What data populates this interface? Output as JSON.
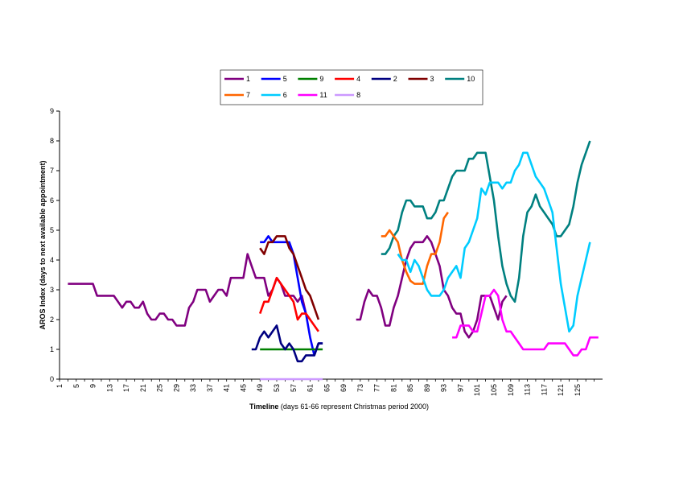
{
  "chart_data": {
    "type": "line",
    "xlabel_bold": "Timeline",
    "xlabel_rest": " (days 61-66 represent Christmas period 2000)",
    "ylabel": "AROS Index (days to next available appointment)",
    "xlim": [
      1,
      126
    ],
    "ylim": [
      0,
      9
    ],
    "x_ticks": [
      1,
      5,
      9,
      13,
      17,
      21,
      25,
      29,
      33,
      37,
      41,
      45,
      49,
      53,
      57,
      61,
      65,
      69,
      73,
      77,
      81,
      85,
      89,
      93,
      97,
      101,
      105,
      109,
      113,
      117,
      121,
      125
    ],
    "y_ticks": [
      0,
      1,
      2,
      3,
      4,
      5,
      6,
      7,
      8,
      9
    ],
    "legend_position": "top",
    "series": [
      {
        "name": "1",
        "color": "#800080",
        "points": [
          [
            3,
            3.2
          ],
          [
            7,
            3.2
          ],
          [
            9,
            3.2
          ],
          [
            10,
            2.8
          ],
          [
            14,
            2.8
          ],
          [
            16,
            2.4
          ],
          [
            17,
            2.6
          ],
          [
            18,
            2.6
          ],
          [
            19,
            2.4
          ],
          [
            20,
            2.4
          ],
          [
            21,
            2.6
          ],
          [
            22,
            2.2
          ],
          [
            23,
            2.0
          ],
          [
            24,
            2.0
          ],
          [
            25,
            2.2
          ],
          [
            26,
            2.2
          ],
          [
            27,
            2.0
          ],
          [
            28,
            2.0
          ],
          [
            29,
            1.8
          ],
          [
            31,
            1.8
          ],
          [
            32,
            2.4
          ],
          [
            33,
            2.6
          ],
          [
            34,
            3.0
          ],
          [
            36,
            3.0
          ],
          [
            37,
            2.6
          ],
          [
            38,
            2.8
          ],
          [
            39,
            3.0
          ],
          [
            40,
            3.0
          ],
          [
            41,
            2.8
          ],
          [
            42,
            3.4
          ],
          [
            45,
            3.4
          ],
          [
            46,
            4.2
          ],
          [
            47,
            3.8
          ],
          [
            48,
            3.4
          ],
          [
            50,
            3.4
          ],
          [
            51,
            2.8
          ],
          [
            52,
            3.0
          ],
          [
            53,
            3.4
          ],
          [
            54,
            3.2
          ],
          [
            55,
            2.8
          ],
          [
            57,
            2.8
          ],
          [
            58,
            2.6
          ],
          [
            59,
            2.8
          ],
          [
            60,
            2.2
          ],
          [
            61,
            2.0
          ]
        ]
      },
      {
        "name": "1",
        "color": "#800080",
        "points": [
          [
            72,
            2.0
          ],
          [
            73,
            2.0
          ],
          [
            74,
            2.6
          ],
          [
            75,
            3.0
          ],
          [
            76,
            2.8
          ],
          [
            77,
            2.8
          ],
          [
            78,
            2.4
          ],
          [
            79,
            1.8
          ],
          [
            80,
            1.8
          ],
          [
            81,
            2.4
          ],
          [
            82,
            2.8
          ],
          [
            83,
            3.4
          ],
          [
            84,
            4.0
          ],
          [
            85,
            4.4
          ],
          [
            86,
            4.6
          ],
          [
            88,
            4.6
          ],
          [
            89,
            4.8
          ],
          [
            90,
            4.6
          ],
          [
            91,
            4.2
          ],
          [
            92,
            3.8
          ],
          [
            93,
            3.0
          ],
          [
            94,
            2.8
          ],
          [
            95,
            2.4
          ],
          [
            96,
            2.2
          ],
          [
            97,
            2.2
          ],
          [
            98,
            1.6
          ],
          [
            99,
            1.4
          ],
          [
            100,
            1.6
          ],
          [
            101,
            2.0
          ],
          [
            102,
            2.8
          ],
          [
            103,
            2.8
          ],
          [
            104,
            2.8
          ],
          [
            105,
            2.4
          ],
          [
            106,
            2.0
          ],
          [
            107,
            2.6
          ],
          [
            108,
            2.8
          ]
        ]
      },
      {
        "name": "5",
        "color": "#0000FF",
        "points": [
          [
            49,
            4.6
          ],
          [
            50,
            4.6
          ],
          [
            51,
            4.8
          ],
          [
            52,
            4.6
          ],
          [
            53,
            4.6
          ],
          [
            56,
            4.6
          ],
          [
            57,
            4.2
          ],
          [
            58,
            3.4
          ],
          [
            59,
            2.6
          ],
          [
            60,
            2.2
          ],
          [
            61,
            1.4
          ],
          [
            62,
            0.8
          ],
          [
            63,
            1.2
          ],
          [
            64,
            1.2
          ]
        ]
      },
      {
        "name": "9",
        "color": "#008000",
        "points": [
          [
            49,
            1.0
          ],
          [
            64,
            1.0
          ]
        ]
      },
      {
        "name": "4",
        "color": "#FF0000",
        "points": [
          [
            49,
            2.2
          ],
          [
            50,
            2.6
          ],
          [
            51,
            2.6
          ],
          [
            52,
            3.0
          ],
          [
            53,
            3.4
          ],
          [
            54,
            3.2
          ],
          [
            55,
            3.0
          ],
          [
            56,
            2.8
          ],
          [
            57,
            2.6
          ],
          [
            58,
            2.0
          ],
          [
            59,
            2.2
          ],
          [
            60,
            2.2
          ],
          [
            61,
            2.0
          ],
          [
            62,
            1.8
          ],
          [
            63,
            1.6
          ]
        ]
      },
      {
        "name": "2",
        "color": "#000080",
        "points": [
          [
            47,
            1.0
          ],
          [
            48,
            1.0
          ],
          [
            49,
            1.4
          ],
          [
            50,
            1.6
          ],
          [
            51,
            1.4
          ],
          [
            52,
            1.6
          ],
          [
            53,
            1.8
          ],
          [
            54,
            1.2
          ],
          [
            55,
            1.0
          ],
          [
            56,
            1.2
          ],
          [
            57,
            1.0
          ],
          [
            58,
            0.6
          ],
          [
            59,
            0.6
          ],
          [
            60,
            0.8
          ],
          [
            61,
            0.8
          ],
          [
            62,
            0.8
          ],
          [
            63,
            1.2
          ],
          [
            64,
            1.2
          ]
        ]
      },
      {
        "name": "3",
        "color": "#800000",
        "points": [
          [
            49,
            4.4
          ],
          [
            50,
            4.2
          ],
          [
            51,
            4.6
          ],
          [
            52,
            4.6
          ],
          [
            53,
            4.8
          ],
          [
            55,
            4.8
          ],
          [
            56,
            4.4
          ],
          [
            57,
            4.2
          ],
          [
            58,
            3.8
          ],
          [
            59,
            3.4
          ],
          [
            60,
            3.0
          ],
          [
            61,
            2.8
          ],
          [
            62,
            2.4
          ],
          [
            63,
            2.0
          ]
        ]
      },
      {
        "name": "10",
        "color": "#008080",
        "points": [
          [
            78,
            4.2
          ],
          [
            79,
            4.2
          ],
          [
            80,
            4.4
          ],
          [
            81,
            4.8
          ],
          [
            82,
            5.0
          ],
          [
            83,
            5.6
          ],
          [
            84,
            6.0
          ],
          [
            85,
            6.0
          ],
          [
            86,
            5.8
          ],
          [
            87,
            5.8
          ],
          [
            88,
            5.8
          ],
          [
            89,
            5.4
          ],
          [
            90,
            5.4
          ],
          [
            91,
            5.6
          ],
          [
            92,
            6.0
          ],
          [
            93,
            6.0
          ],
          [
            94,
            6.4
          ],
          [
            95,
            6.8
          ],
          [
            96,
            7.0
          ],
          [
            98,
            7.0
          ],
          [
            99,
            7.4
          ],
          [
            100,
            7.4
          ],
          [
            101,
            7.6
          ],
          [
            103,
            7.6
          ],
          [
            104,
            6.8
          ],
          [
            105,
            6.0
          ],
          [
            106,
            4.8
          ],
          [
            107,
            3.8
          ],
          [
            108,
            3.2
          ],
          [
            109,
            2.8
          ],
          [
            110,
            2.6
          ],
          [
            111,
            3.4
          ],
          [
            112,
            4.8
          ],
          [
            113,
            5.6
          ],
          [
            114,
            5.8
          ],
          [
            115,
            6.2
          ],
          [
            116,
            5.8
          ],
          [
            117,
            5.6
          ],
          [
            118,
            5.4
          ],
          [
            119,
            5.2
          ],
          [
            120,
            4.8
          ],
          [
            121,
            4.8
          ],
          [
            122,
            5.0
          ],
          [
            123,
            5.2
          ],
          [
            124,
            5.8
          ],
          [
            125,
            6.6
          ],
          [
            126,
            7.2
          ],
          [
            127,
            7.6
          ],
          [
            128,
            8.0
          ]
        ]
      },
      {
        "name": "7",
        "color": "#FF6600",
        "points": [
          [
            78,
            4.8
          ],
          [
            79,
            4.8
          ],
          [
            80,
            5.0
          ],
          [
            81,
            4.8
          ],
          [
            82,
            4.6
          ],
          [
            83,
            4.0
          ],
          [
            84,
            3.6
          ],
          [
            85,
            3.3
          ],
          [
            86,
            3.2
          ],
          [
            87,
            3.2
          ],
          [
            88,
            3.2
          ],
          [
            89,
            3.8
          ],
          [
            90,
            4.2
          ],
          [
            91,
            4.2
          ],
          [
            92,
            4.6
          ],
          [
            93,
            5.4
          ],
          [
            94,
            5.6
          ]
        ]
      },
      {
        "name": "6",
        "color": "#00CCFF",
        "points": [
          [
            82,
            4.2
          ],
          [
            83,
            4.0
          ],
          [
            84,
            4.0
          ],
          [
            85,
            3.6
          ],
          [
            86,
            4.0
          ],
          [
            87,
            3.8
          ],
          [
            88,
            3.4
          ],
          [
            89,
            3.0
          ],
          [
            90,
            2.8
          ],
          [
            92,
            2.8
          ],
          [
            93,
            3.0
          ],
          [
            94,
            3.4
          ],
          [
            95,
            3.6
          ],
          [
            96,
            3.8
          ],
          [
            97,
            3.4
          ],
          [
            98,
            4.4
          ],
          [
            99,
            4.6
          ],
          [
            100,
            5.0
          ],
          [
            101,
            5.4
          ],
          [
            102,
            6.4
          ],
          [
            103,
            6.2
          ],
          [
            104,
            6.6
          ],
          [
            106,
            6.6
          ],
          [
            107,
            6.4
          ],
          [
            108,
            6.6
          ],
          [
            109,
            6.6
          ],
          [
            110,
            7.0
          ],
          [
            111,
            7.2
          ],
          [
            112,
            7.6
          ],
          [
            113,
            7.6
          ],
          [
            114,
            7.2
          ],
          [
            115,
            6.8
          ],
          [
            116,
            6.6
          ],
          [
            117,
            6.4
          ],
          [
            118,
            6.0
          ],
          [
            119,
            5.6
          ],
          [
            120,
            4.4
          ],
          [
            121,
            3.2
          ],
          [
            122,
            2.4
          ],
          [
            123,
            1.6
          ],
          [
            124,
            1.8
          ],
          [
            125,
            2.8
          ],
          [
            126,
            3.4
          ],
          [
            127,
            4.0
          ],
          [
            128,
            4.6
          ]
        ]
      },
      {
        "name": "11",
        "color": "#FF00FF",
        "points": [
          [
            95,
            1.4
          ],
          [
            96,
            1.4
          ],
          [
            97,
            1.8
          ],
          [
            99,
            1.8
          ],
          [
            100,
            1.6
          ],
          [
            101,
            1.6
          ],
          [
            102,
            2.2
          ],
          [
            103,
            2.8
          ],
          [
            104,
            2.8
          ],
          [
            105,
            3.0
          ],
          [
            106,
            2.8
          ],
          [
            107,
            2.0
          ],
          [
            108,
            1.6
          ],
          [
            109,
            1.6
          ],
          [
            110,
            1.4
          ],
          [
            111,
            1.2
          ],
          [
            112,
            1.0
          ],
          [
            117,
            1.0
          ],
          [
            118,
            1.2
          ],
          [
            122,
            1.2
          ],
          [
            123,
            1.0
          ],
          [
            124,
            0.8
          ],
          [
            125,
            0.8
          ],
          [
            126,
            1.0
          ],
          [
            127,
            1.0
          ],
          [
            128,
            1.4
          ],
          [
            130,
            1.4
          ]
        ]
      },
      {
        "name": "8",
        "color": "#CC99FF",
        "points": [
          [
            49,
            0.0
          ],
          [
            64,
            0.0
          ]
        ]
      }
    ],
    "legend": [
      {
        "label": "1",
        "color": "#800080"
      },
      {
        "label": "5",
        "color": "#0000FF"
      },
      {
        "label": "9",
        "color": "#008000"
      },
      {
        "label": "4",
        "color": "#FF0000"
      },
      {
        "label": "2",
        "color": "#000080"
      },
      {
        "label": "3",
        "color": "#800000"
      },
      {
        "label": "10",
        "color": "#008080"
      },
      {
        "label": "7",
        "color": "#FF6600"
      },
      {
        "label": "6",
        "color": "#00CCFF"
      },
      {
        "label": "11",
        "color": "#FF00FF"
      },
      {
        "label": "8",
        "color": "#CC99FF"
      }
    ]
  }
}
